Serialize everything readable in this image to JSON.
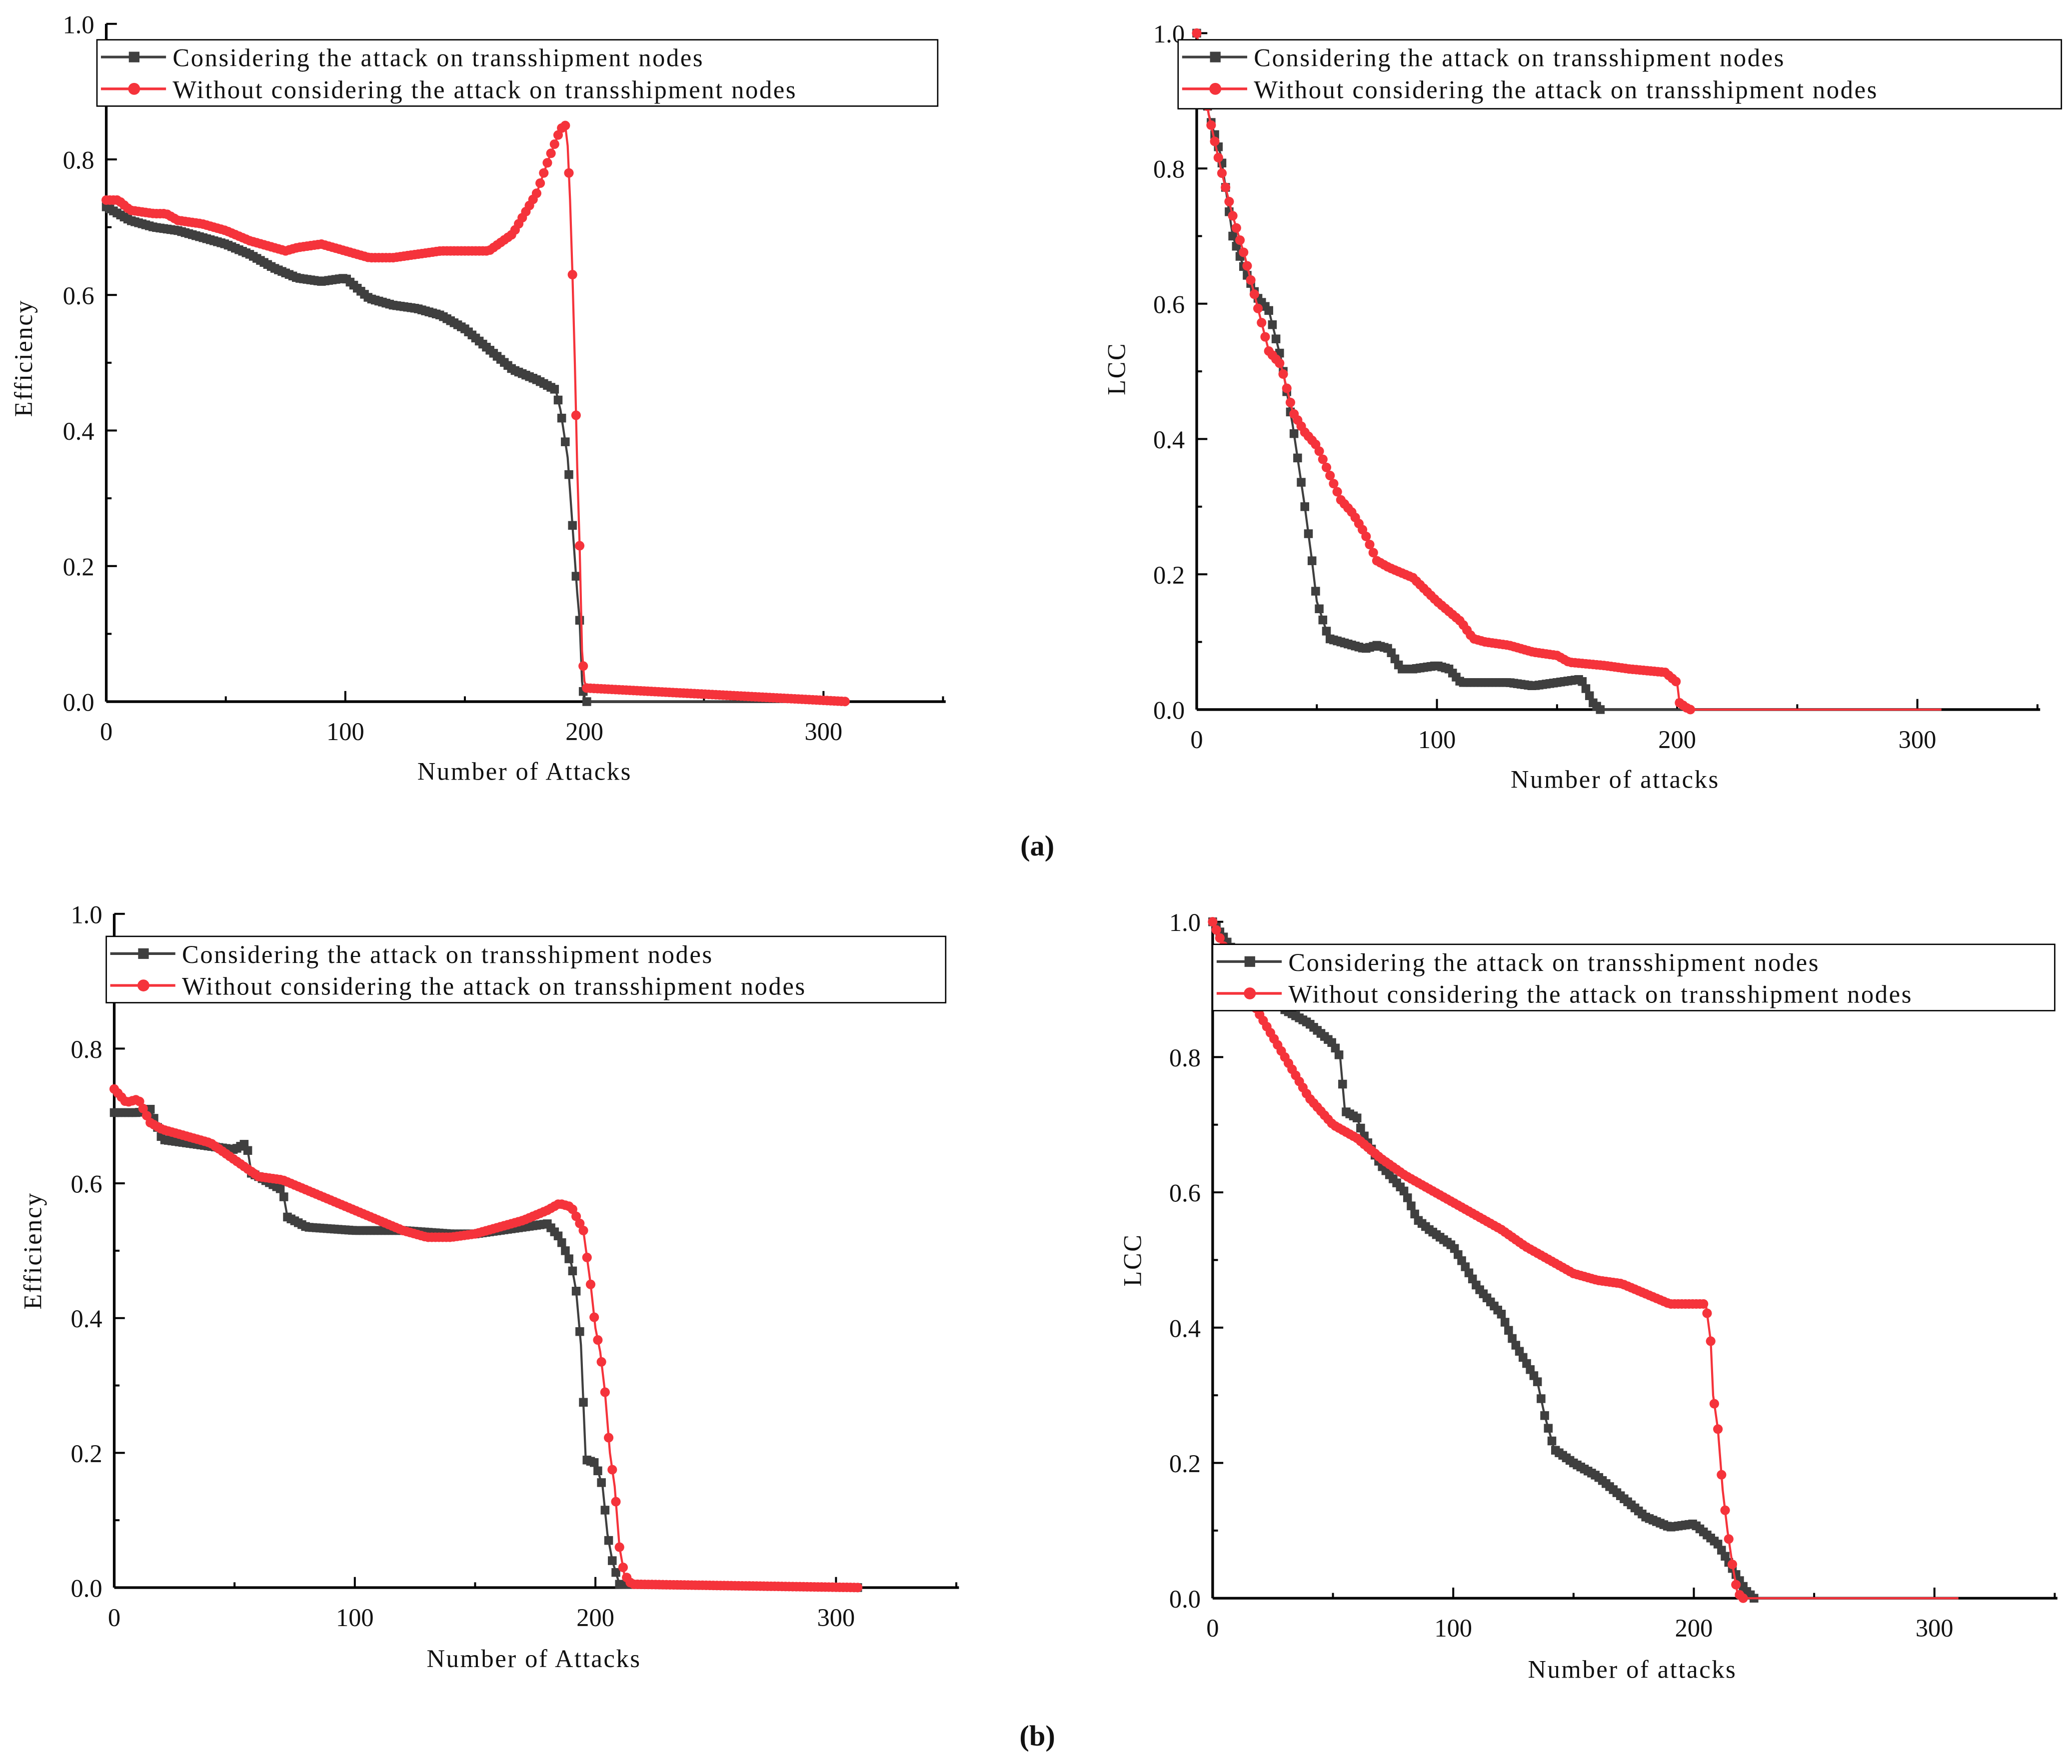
{
  "figure_labels": [
    "(a)",
    "(b)"
  ],
  "colors": {
    "series_black": "#3f3f3f",
    "series_red": "#f5333b",
    "axis": "#000000"
  },
  "chart_data": [
    {
      "type": "line",
      "panel": "a-left",
      "xlabel": "Number of Attacks",
      "ylabel": "Efficiency",
      "xlim": [
        0,
        350
      ],
      "ylim": [
        0,
        1.0
      ],
      "xticks": [
        "0",
        "100",
        "200",
        "300"
      ],
      "xtick_values": [
        0,
        100,
        200,
        300
      ],
      "yticks": [
        "0.0",
        "0.2",
        "0.4",
        "0.6",
        "0.8",
        "1.0"
      ],
      "ytick_values": [
        0,
        0.2,
        0.4,
        0.6,
        0.8,
        1.0
      ],
      "legend_position": "top",
      "series": [
        {
          "name": "Considering the attack on transshipment nodes",
          "marker": "square",
          "x": [
            0,
            10,
            20,
            30,
            40,
            50,
            60,
            70,
            80,
            90,
            100,
            110,
            120,
            130,
            140,
            150,
            160,
            170,
            180,
            188,
            190,
            193,
            195,
            197,
            198,
            199,
            200,
            310
          ],
          "y": [
            0.73,
            0.71,
            0.7,
            0.695,
            0.685,
            0.675,
            0.66,
            0.64,
            0.625,
            0.62,
            0.625,
            0.595,
            0.585,
            0.58,
            0.57,
            0.55,
            0.52,
            0.49,
            0.475,
            0.46,
            0.43,
            0.36,
            0.26,
            0.16,
            0.12,
            0.03,
            0,
            0
          ]
        },
        {
          "name": "Without considering the attack on transshipment nodes",
          "marker": "circle",
          "x": [
            0,
            5,
            10,
            20,
            25,
            30,
            40,
            50,
            60,
            70,
            75,
            80,
            90,
            100,
            110,
            120,
            130,
            140,
            150,
            160,
            170,
            180,
            185,
            190,
            192,
            193,
            194,
            195,
            196,
            197,
            198,
            199,
            200,
            201,
            310
          ],
          "y": [
            0.74,
            0.74,
            0.725,
            0.72,
            0.72,
            0.71,
            0.705,
            0.695,
            0.68,
            0.67,
            0.665,
            0.67,
            0.675,
            0.665,
            0.655,
            0.655,
            0.66,
            0.665,
            0.665,
            0.665,
            0.69,
            0.75,
            0.8,
            0.845,
            0.85,
            0.82,
            0.74,
            0.63,
            0.5,
            0.345,
            0.23,
            0.075,
            0.03,
            0.02,
            0
          ]
        }
      ]
    },
    {
      "type": "line",
      "panel": "a-right",
      "xlabel": "Number of attacks",
      "ylabel": "LCC",
      "xlim": [
        0,
        350
      ],
      "ylim": [
        0,
        1.0
      ],
      "xticks": [
        "0",
        "100",
        "200",
        "300"
      ],
      "xtick_values": [
        0,
        100,
        200,
        300
      ],
      "yticks": [
        "0.0",
        "0.2",
        "0.4",
        "0.6",
        "0.8",
        "1.0"
      ],
      "ytick_values": [
        0,
        0.2,
        0.4,
        0.6,
        0.8,
        1.0
      ],
      "legend_position": "top",
      "series": [
        {
          "name": "Considering the attack on transshipment nodes",
          "marker": "square",
          "x": [
            0,
            5,
            10,
            15,
            20,
            25,
            30,
            35,
            40,
            45,
            48,
            50,
            55,
            60,
            65,
            70,
            75,
            80,
            85,
            90,
            100,
            105,
            110,
            120,
            130,
            140,
            150,
            160,
            165,
            168,
            310
          ],
          "y": [
            1.0,
            0.88,
            0.82,
            0.7,
            0.65,
            0.61,
            0.59,
            0.52,
            0.42,
            0.3,
            0.22,
            0.16,
            0.105,
            0.1,
            0.095,
            0.09,
            0.095,
            0.09,
            0.06,
            0.06,
            0.065,
            0.06,
            0.04,
            0.04,
            0.04,
            0.035,
            0.04,
            0.045,
            0.01,
            0,
            0
          ]
        },
        {
          "name": "Without considering the attack on transshipment nodes",
          "marker": "circle",
          "x": [
            0,
            5,
            10,
            15,
            20,
            25,
            30,
            35,
            40,
            45,
            50,
            55,
            60,
            65,
            70,
            75,
            80,
            90,
            100,
            110,
            115,
            120,
            130,
            140,
            150,
            155,
            170,
            180,
            195,
            200,
            201,
            205,
            310
          ],
          "y": [
            1.0,
            0.88,
            0.8,
            0.73,
            0.67,
            0.6,
            0.53,
            0.51,
            0.44,
            0.41,
            0.39,
            0.35,
            0.31,
            0.29,
            0.26,
            0.22,
            0.21,
            0.195,
            0.16,
            0.13,
            0.105,
            0.1,
            0.095,
            0.085,
            0.08,
            0.07,
            0.065,
            0.06,
            0.055,
            0.04,
            0.01,
            0,
            0
          ]
        }
      ]
    },
    {
      "type": "line",
      "panel": "b-left",
      "xlabel": "Number of Attacks",
      "ylabel": "Efficiency",
      "xlim": [
        0,
        350
      ],
      "ylim": [
        0,
        1.0
      ],
      "xticks": [
        "0",
        "100",
        "200",
        "300"
      ],
      "xtick_values": [
        0,
        100,
        200,
        300
      ],
      "yticks": [
        "0.0",
        "0.2",
        "0.4",
        "0.6",
        "0.8",
        "1.0"
      ],
      "ytick_values": [
        0,
        0.2,
        0.4,
        0.6,
        0.8,
        1.0
      ],
      "legend_position": "top",
      "series": [
        {
          "name": "Considering the attack on transshipment nodes",
          "marker": "square",
          "x": [
            0,
            10,
            15,
            20,
            30,
            40,
            50,
            55,
            57,
            60,
            70,
            72,
            80,
            100,
            120,
            140,
            150,
            160,
            170,
            180,
            185,
            190,
            192,
            194,
            196,
            200,
            203,
            205,
            207,
            210,
            310
          ],
          "y": [
            0.705,
            0.705,
            0.71,
            0.665,
            0.66,
            0.655,
            0.65,
            0.66,
            0.615,
            0.61,
            0.59,
            0.55,
            0.535,
            0.53,
            0.53,
            0.525,
            0.525,
            0.53,
            0.535,
            0.54,
            0.52,
            0.48,
            0.44,
            0.36,
            0.19,
            0.185,
            0.15,
            0.08,
            0.04,
            0.005,
            0
          ]
        },
        {
          "name": "Without considering the attack on transshipment nodes",
          "marker": "circle",
          "x": [
            0,
            5,
            10,
            15,
            20,
            30,
            40,
            50,
            60,
            70,
            80,
            90,
            100,
            110,
            120,
            130,
            140,
            150,
            160,
            170,
            180,
            185,
            190,
            195,
            198,
            200,
            202,
            204,
            206,
            208,
            210,
            212,
            215,
            310
          ],
          "y": [
            0.74,
            0.72,
            0.725,
            0.69,
            0.68,
            0.67,
            0.66,
            0.635,
            0.61,
            0.605,
            0.59,
            0.575,
            0.56,
            0.545,
            0.53,
            0.52,
            0.52,
            0.525,
            0.535,
            0.545,
            0.56,
            0.57,
            0.565,
            0.53,
            0.45,
            0.385,
            0.35,
            0.29,
            0.2,
            0.15,
            0.06,
            0.02,
            0.005,
            0
          ]
        }
      ]
    },
    {
      "type": "line",
      "panel": "b-right",
      "xlabel": "Number of attacks",
      "ylabel": "LCC",
      "xlim": [
        0,
        350
      ],
      "ylim": [
        0,
        1.0
      ],
      "xticks": [
        "0",
        "100",
        "200",
        "300"
      ],
      "xtick_values": [
        0,
        100,
        200,
        300
      ],
      "yticks": [
        "0.0",
        "0.2",
        "0.4",
        "0.6",
        "0.8",
        "1.0"
      ],
      "ytick_values": [
        0,
        0.2,
        0.4,
        0.6,
        0.8,
        1.0
      ],
      "legend_position": "top",
      "series": [
        {
          "name": "Considering the attack on transshipment nodes",
          "marker": "square",
          "x": [
            0,
            10,
            20,
            30,
            40,
            50,
            53,
            55,
            60,
            62,
            65,
            70,
            80,
            85,
            90,
            100,
            110,
            120,
            125,
            130,
            135,
            138,
            142,
            150,
            160,
            170,
            180,
            190,
            200,
            210,
            215,
            220,
            222,
            225,
            310
          ],
          "y": [
            1.0,
            0.95,
            0.9,
            0.87,
            0.85,
            0.82,
            0.8,
            0.72,
            0.71,
            0.69,
            0.67,
            0.64,
            0.6,
            0.56,
            0.545,
            0.52,
            0.46,
            0.42,
            0.38,
            0.35,
            0.32,
            0.27,
            0.22,
            0.2,
            0.18,
            0.15,
            0.12,
            0.105,
            0.11,
            0.08,
            0.05,
            0.02,
            0.01,
            0,
            0
          ]
        },
        {
          "name": "Without considering the attack on transshipment nodes",
          "marker": "circle",
          "x": [
            0,
            10,
            20,
            30,
            40,
            50,
            60,
            70,
            80,
            90,
            100,
            110,
            120,
            130,
            140,
            150,
            160,
            170,
            180,
            190,
            200,
            205,
            207,
            208,
            210,
            212,
            214,
            216,
            218,
            220,
            310
          ],
          "y": [
            1.0,
            0.92,
            0.86,
            0.8,
            0.74,
            0.7,
            0.68,
            0.65,
            0.625,
            0.605,
            0.585,
            0.565,
            0.545,
            0.52,
            0.5,
            0.48,
            0.47,
            0.465,
            0.45,
            0.435,
            0.435,
            0.435,
            0.38,
            0.3,
            0.25,
            0.16,
            0.1,
            0.05,
            0.01,
            0,
            0
          ]
        }
      ]
    }
  ]
}
